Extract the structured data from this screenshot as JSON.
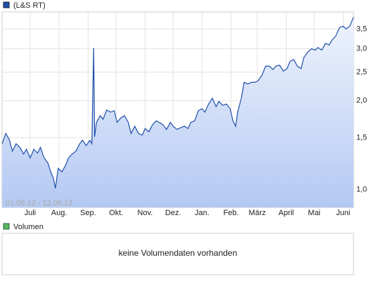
{
  "chart_data": [
    {
      "type": "line",
      "log_scale": true,
      "grid": true,
      "range_label": "01.06.12 - 12.06.13",
      "x": [
        0,
        4,
        8,
        11,
        15,
        19,
        23,
        26,
        30,
        34,
        38,
        41,
        45,
        49,
        52,
        55,
        57,
        60,
        64,
        68,
        71,
        75,
        79,
        83,
        86,
        90,
        94,
        96,
        98,
        99,
        101,
        105,
        108,
        112,
        116,
        120,
        123,
        127,
        131,
        135,
        138,
        142,
        146,
        150,
        153,
        157,
        161,
        165,
        168,
        172,
        176,
        180,
        183,
        187,
        191,
        195,
        199,
        202,
        206,
        210,
        214,
        217,
        221,
        225,
        229,
        232,
        236,
        240,
        244,
        247,
        250,
        252,
        256,
        259,
        263,
        267,
        271,
        274,
        278,
        282,
        286,
        290,
        293,
        297,
        301,
        305,
        308,
        312,
        316,
        320,
        323,
        327,
        331,
        335,
        338,
        342,
        346,
        350,
        353,
        357,
        361,
        365,
        368,
        372,
        376
      ],
      "series": [
        {
          "name": "(L&S RT)",
          "color": "#1f4fa8",
          "values": [
            1.43,
            1.55,
            1.47,
            1.35,
            1.43,
            1.39,
            1.32,
            1.37,
            1.28,
            1.37,
            1.33,
            1.39,
            1.28,
            1.23,
            1.15,
            1.09,
            1.01,
            1.18,
            1.15,
            1.21,
            1.28,
            1.32,
            1.35,
            1.43,
            1.47,
            1.41,
            1.47,
            1.43,
            3.02,
            1.51,
            1.69,
            1.78,
            1.73,
            1.86,
            1.83,
            1.85,
            1.69,
            1.75,
            1.78,
            1.69,
            1.55,
            1.64,
            1.55,
            1.53,
            1.61,
            1.57,
            1.66,
            1.71,
            1.69,
            1.66,
            1.6,
            1.69,
            1.64,
            1.6,
            1.62,
            1.64,
            1.61,
            1.69,
            1.71,
            1.85,
            1.88,
            1.83,
            1.95,
            2.04,
            1.91,
            1.99,
            1.93,
            1.95,
            1.88,
            1.71,
            1.64,
            1.83,
            2.04,
            2.31,
            2.28,
            2.31,
            2.31,
            2.34,
            2.44,
            2.62,
            2.62,
            2.55,
            2.62,
            2.64,
            2.52,
            2.57,
            2.72,
            2.76,
            2.62,
            2.57,
            2.81,
            2.92,
            3.0,
            2.97,
            3.03,
            2.97,
            3.13,
            3.09,
            3.21,
            3.31,
            3.54,
            3.58,
            3.5,
            3.58,
            3.84
          ]
        }
      ],
      "xlim": [
        0,
        376
      ],
      "xticks": [
        {
          "value": 30,
          "label": "Juli"
        },
        {
          "value": 61,
          "label": "Aug."
        },
        {
          "value": 92,
          "label": "Sep."
        },
        {
          "value": 122,
          "label": "Okt."
        },
        {
          "value": 153,
          "label": "Nov."
        },
        {
          "value": 183,
          "label": "Dez."
        },
        {
          "value": 214,
          "label": "Jan."
        },
        {
          "value": 245,
          "label": "Feb."
        },
        {
          "value": 273,
          "label": "März"
        },
        {
          "value": 304,
          "label": "April"
        },
        {
          "value": 334,
          "label": "Mai"
        },
        {
          "value": 365,
          "label": "Juni"
        }
      ],
      "ylim": [
        0.87,
        4.0
      ],
      "yticks": [
        {
          "value": 1,
          "label": "1,0"
        },
        {
          "value": 1.5,
          "label": "1,5"
        },
        {
          "value": 2,
          "label": "2,0"
        },
        {
          "value": 2.5,
          "label": "2,5"
        },
        {
          "value": 3,
          "label": "3,0"
        },
        {
          "value": 3.5,
          "label": "3,5"
        }
      ]
    },
    {
      "type": "bar",
      "series": [
        {
          "name": "Volumen",
          "color": "#5cb85c",
          "values": []
        }
      ],
      "message": "keine Volumendaten vorhanden"
    }
  ]
}
